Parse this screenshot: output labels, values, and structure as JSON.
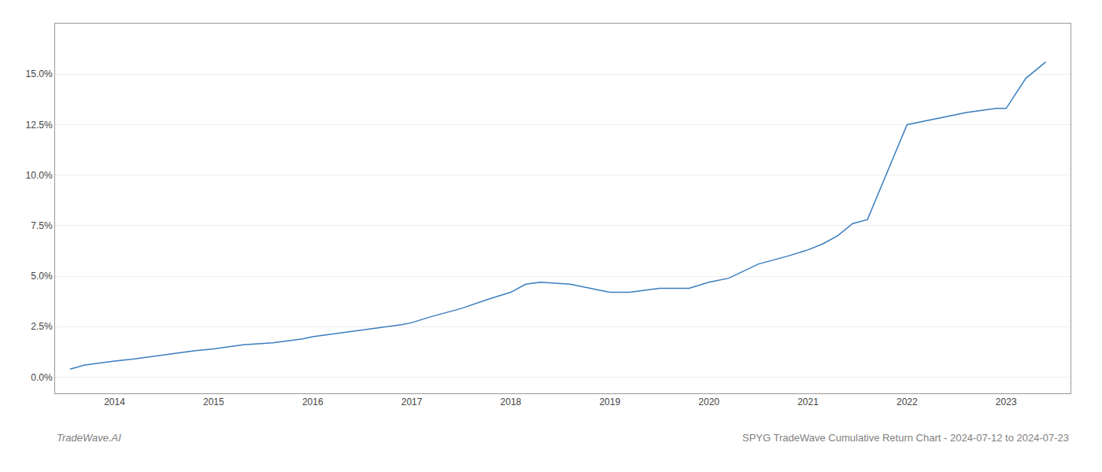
{
  "chart_data": {
    "type": "line",
    "title": "SPYG TradeWave Cumulative Return Chart - 2024-07-12 to 2024-07-23",
    "annotations": [
      "TradeWave.AI"
    ],
    "color": "#3a7ebf",
    "x": [
      2013.55,
      2013.7,
      2013.85,
      2014.0,
      2014.2,
      2014.5,
      2014.8,
      2015.0,
      2015.3,
      2015.6,
      2015.9,
      2016.0,
      2016.3,
      2016.6,
      2016.9,
      2017.0,
      2017.2,
      2017.5,
      2017.8,
      2018.0,
      2018.15,
      2018.3,
      2018.6,
      2018.9,
      2019.0,
      2019.2,
      2019.5,
      2019.8,
      2020.0,
      2020.2,
      2020.5,
      2020.8,
      2021.0,
      2021.15,
      2021.3,
      2021.45,
      2021.6,
      2022.0,
      2022.3,
      2022.6,
      2022.9,
      2023.0,
      2023.2,
      2023.4
    ],
    "values": [
      0.004,
      0.006,
      0.007,
      0.008,
      0.009,
      0.011,
      0.013,
      0.014,
      0.016,
      0.017,
      0.019,
      0.02,
      0.022,
      0.024,
      0.026,
      0.027,
      0.03,
      0.034,
      0.039,
      0.042,
      0.046,
      0.047,
      0.046,
      0.043,
      0.042,
      0.042,
      0.044,
      0.044,
      0.047,
      0.049,
      0.056,
      0.06,
      0.063,
      0.066,
      0.07,
      0.076,
      0.078,
      0.125,
      0.128,
      0.131,
      0.133,
      0.133,
      0.148,
      0.156
    ],
    "xlim": [
      2013.4,
      2023.65
    ],
    "xticks": [
      2014,
      2015,
      2016,
      2017,
      2018,
      2019,
      2020,
      2021,
      2022,
      2023
    ],
    "ylim": [
      -0.008,
      0.175
    ],
    "yticks": [
      {
        "value": 0.0,
        "label": "0.0%"
      },
      {
        "value": 0.025,
        "label": "2.5%"
      },
      {
        "value": 0.05,
        "label": "5.0%"
      },
      {
        "value": 0.075,
        "label": "7.5%"
      },
      {
        "value": 0.1,
        "label": "10.0%"
      },
      {
        "value": 0.125,
        "label": "12.5%"
      },
      {
        "value": 0.15,
        "label": "15.0%"
      }
    ],
    "grid": "y"
  }
}
